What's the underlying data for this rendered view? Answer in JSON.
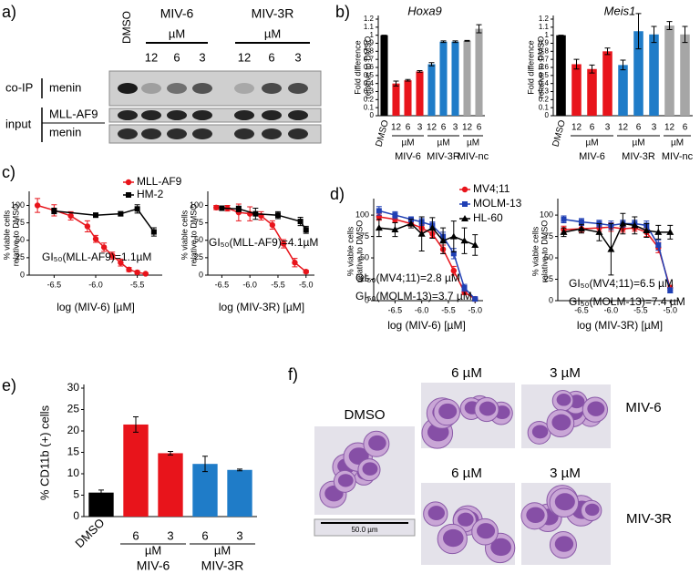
{
  "labels": {
    "a": "a)",
    "b": "b)",
    "c": "c)",
    "d": "d)",
    "e": "e)",
    "f": "f)"
  },
  "blot": {
    "dmso": "DMSO",
    "groups": [
      {
        "name": "MIV-6",
        "unit": "µM",
        "doses": [
          "12",
          "6",
          "3"
        ]
      },
      {
        "name": "MIV-3R",
        "unit": "µM",
        "doses": [
          "12",
          "6",
          "3"
        ]
      }
    ],
    "rows": {
      "coip": "co-IP",
      "input": "input",
      "coip_menin": "menin",
      "mll_af9": "MLL-AF9",
      "input_menin": "menin"
    }
  },
  "micrographs": {
    "dmso": "DMSO",
    "scale": "50.0 µm",
    "doses": [
      "6 µM",
      "3 µM",
      "6 µM",
      "3 µM"
    ],
    "rows": [
      "MIV-6",
      "MIV-3R"
    ]
  },
  "chart_data": [
    {
      "type": "bar",
      "title": "Hoxa9",
      "y_label": [
        "Fold difference",
        "relative to DMSO"
      ],
      "categories": [
        "DMSO",
        "12",
        "6",
        "3",
        "12",
        "6",
        "3",
        "12",
        "6"
      ],
      "values": [
        1,
        0.4,
        0.44,
        0.55,
        0.64,
        0.92,
        0.92,
        0.93,
        1.08
      ],
      "errors": [
        0,
        0.03,
        0.01,
        0.01,
        0.02,
        0.01,
        0.01,
        0.005,
        0.05
      ],
      "colors": [
        "#000000",
        "#e8141b",
        "#e8141b",
        "#e8141b",
        "#1f7cc8",
        "#1f7cc8",
        "#1f7cc8",
        "#a6a6a6",
        "#a6a6a6"
      ],
      "groups": [
        {
          "unit": "µM",
          "name": "MIV-6"
        },
        {
          "unit": "µM",
          "name": "MIV-3R"
        },
        {
          "unit": "µM",
          "name": "MIV-nc"
        }
      ],
      "ylim": [
        0,
        1.2
      ],
      "yticks": [
        0,
        0.1,
        0.2,
        0.3,
        0.4,
        0.5,
        0.6,
        0.7,
        0.8,
        0.9,
        1,
        1.1,
        1.2
      ]
    },
    {
      "type": "bar",
      "title": "Meis1",
      "y_label": [
        "Fold difference",
        "relative to DMSO"
      ],
      "categories": [
        "DMSO",
        "12",
        "6",
        "3",
        "12",
        "6",
        "3",
        "12",
        "6"
      ],
      "values": [
        1,
        0.64,
        0.58,
        0.8,
        0.63,
        1.05,
        1.01,
        1.12,
        1.01
      ],
      "errors": [
        0,
        0.06,
        0.05,
        0.04,
        0.06,
        0.22,
        0.1,
        0.05,
        0.1
      ],
      "colors": [
        "#000000",
        "#e8141b",
        "#e8141b",
        "#e8141b",
        "#1f7cc8",
        "#1f7cc8",
        "#1f7cc8",
        "#a6a6a6",
        "#a6a6a6"
      ],
      "groups": [
        {
          "unit": "µM",
          "name": "MIV-6"
        },
        {
          "unit": "µM",
          "name": "MIV-3R"
        },
        {
          "unit": "µM",
          "name": "MIV-nc"
        }
      ],
      "ylim": [
        0,
        1.2
      ],
      "yticks": [
        0,
        0.1,
        0.2,
        0.3,
        0.4,
        0.5,
        0.6,
        0.7,
        0.8,
        0.9,
        1,
        1.1,
        1.2
      ]
    },
    {
      "type": "line",
      "x_label": "log (MIV-6) [µM]",
      "y_label": [
        "% viable cells",
        "relative to DMSO"
      ],
      "legend": "top-right",
      "series": [
        {
          "name": "MLL-AF9",
          "color": "#e8141b",
          "marker": "circle",
          "x": [
            -6.7,
            -6.5,
            -6.3,
            -6.1,
            -6.0,
            -5.9,
            -5.8,
            -5.7,
            -5.6,
            -5.5,
            -5.4
          ],
          "values": [
            100,
            93,
            85,
            70,
            52,
            40,
            28,
            18,
            8,
            4,
            2
          ],
          "errors": [
            10,
            8,
            6,
            8,
            5,
            6,
            5,
            5,
            3,
            2,
            1
          ]
        },
        {
          "name": "HM-2",
          "color": "#000000",
          "marker": "square",
          "x": [
            -6.5,
            -6.0,
            -5.7,
            -5.5,
            -5.3
          ],
          "values": [
            92,
            86,
            88,
            95,
            62
          ],
          "errors": [
            4,
            3,
            3,
            6,
            6
          ]
        }
      ],
      "annotations": [
        "GI₅₀(MLL-AF9)=1.1µM"
      ],
      "xlim": [
        -6.8,
        -5.2
      ],
      "xticks": [
        -6.5,
        {
          "value": -6,
          "label": "-6.0"
        },
        -5.5
      ],
      "ylim": [
        0,
        115
      ],
      "yticks": [
        0,
        25,
        50,
        75,
        100
      ]
    },
    {
      "type": "line",
      "x_label": "log (MIV-3R) [µM]",
      "y_label": [
        "% viable cells",
        "relative to DMSO"
      ],
      "series": [
        {
          "color": "#e8141b",
          "marker": "circle",
          "x": [
            -6.6,
            -6.4,
            -6.2,
            -6.0,
            -5.8,
            -5.6,
            -5.4,
            -5.2,
            -5.0
          ],
          "values": [
            97,
            96,
            90,
            88,
            85,
            72,
            45,
            18,
            5
          ],
          "errors": [
            3,
            4,
            12,
            10,
            6,
            6,
            6,
            6,
            2
          ]
        },
        {
          "color": "#000000",
          "marker": "square",
          "x": [
            -6.5,
            -6.2,
            -5.9,
            -5.5,
            -5.1,
            -5.0
          ],
          "values": [
            96,
            95,
            88,
            86,
            77,
            65
          ],
          "errors": [
            3,
            4,
            8,
            5,
            6,
            5
          ]
        }
      ],
      "annotations": [
        "GI₅₀(MLL-AF9)=4.1µM"
      ],
      "xlim": [
        -6.75,
        -4.85
      ],
      "xticks": [
        -6.5,
        {
          "value": -6,
          "label": "-6.0"
        },
        -5.5,
        {
          "value": -5,
          "label": "-5.0"
        }
      ],
      "ylim": [
        0,
        115
      ],
      "yticks": [
        0,
        25,
        50,
        75,
        100
      ]
    },
    {
      "type": "line",
      "x_label": "log (MIV-6) [µM]",
      "y_label": [
        "% viable cells",
        "relative to DMSO"
      ],
      "legend": "top-right",
      "series": [
        {
          "name": "MV4;11",
          "color": "#e8141b",
          "marker": "circle",
          "x": [
            -6.8,
            -6.5,
            -6.2,
            -6.0,
            -5.8,
            -5.6,
            -5.4,
            -5.2,
            -5.0
          ],
          "values": [
            98,
            95,
            90,
            85,
            78,
            60,
            35,
            10,
            2
          ],
          "errors": [
            4,
            3,
            3,
            4,
            4,
            5,
            5,
            3,
            1
          ]
        },
        {
          "name": "MOLM-13",
          "color": "#1f3fb4",
          "marker": "square",
          "x": [
            -6.8,
            -6.5,
            -6.2,
            -6.0,
            -5.8,
            -5.6,
            -5.4,
            -5.2,
            -5.0
          ],
          "values": [
            105,
            100,
            95,
            92,
            88,
            75,
            55,
            15,
            2
          ],
          "errors": [
            5,
            4,
            3,
            4,
            4,
            5,
            6,
            4,
            1
          ]
        },
        {
          "name": "HL-60",
          "color": "#000000",
          "marker": "triangle",
          "x": [
            -6.8,
            -6.5,
            -6.2,
            -6.0,
            -5.8,
            -5.6,
            -5.4,
            -5.2,
            -5.0
          ],
          "values": [
            85,
            83,
            90,
            78,
            85,
            70,
            75,
            70,
            65
          ],
          "errors": [
            10,
            8,
            5,
            20,
            12,
            15,
            18,
            15,
            12
          ]
        }
      ],
      "annotations": [
        "GI₅₀(MV4;11)=2.8 µM",
        "GI₅₀(MOLM-13)=3.7 µM"
      ],
      "xlim": [
        -6.9,
        -4.85
      ],
      "xticks": [
        -6.5,
        {
          "value": -6,
          "label": "-6.0"
        },
        -5.5,
        {
          "value": -5,
          "label": "-5.0"
        }
      ],
      "ylim": [
        0,
        115
      ],
      "yticks": [
        0,
        25,
        50,
        75,
        100
      ]
    },
    {
      "type": "line",
      "x_label": "log (MIV-3R) [µM]",
      "y_label": [
        "% viable cells",
        "relative to DMSO"
      ],
      "series": [
        {
          "color": "#e8141b",
          "marker": "circle",
          "x": [
            -6.8,
            -6.5,
            -6.2,
            -6.0,
            -5.8,
            -5.6,
            -5.4,
            -5.2,
            -5.0
          ],
          "values": [
            83,
            84,
            85,
            86,
            84,
            85,
            80,
            62,
            15
          ],
          "errors": [
            4,
            4,
            4,
            5,
            4,
            4,
            5,
            6,
            3
          ]
        },
        {
          "color": "#1f3fb4",
          "marker": "square",
          "x": [
            -6.8,
            -6.5,
            -6.2,
            -6.0,
            -5.8,
            -5.6,
            -5.4,
            -5.2,
            -5.0
          ],
          "values": [
            95,
            92,
            90,
            88,
            90,
            90,
            88,
            65,
            12
          ],
          "errors": [
            4,
            4,
            4,
            5,
            4,
            4,
            5,
            6,
            3
          ]
        },
        {
          "color": "#000000",
          "marker": "triangle",
          "x": [
            -6.8,
            -6.5,
            -6.2,
            -6.0,
            -5.8,
            -5.6,
            -5.4,
            -5.2,
            -5.0
          ],
          "values": [
            80,
            84,
            80,
            60,
            90,
            88,
            82,
            80,
            80
          ],
          "errors": [
            5,
            5,
            10,
            30,
            12,
            10,
            8,
            8,
            8
          ]
        }
      ],
      "annotations": [
        "GI₅₀(MV4;11)=6.5 µM",
        "GI₅₀(MOLM-13)=7.4 µM"
      ],
      "xlim": [
        -6.9,
        -4.85
      ],
      "xticks": [
        -6.5,
        {
          "value": -6,
          "label": "-6.0"
        },
        -5.5,
        {
          "value": -5,
          "label": "-5.0"
        }
      ],
      "ylim": [
        0,
        115
      ],
      "yticks": [
        0,
        25,
        50,
        75,
        100
      ]
    },
    {
      "type": "bar",
      "y_label": [
        "% CD11b (+) cells"
      ],
      "categories": [
        "DMSO",
        "6",
        "3",
        "6",
        "3"
      ],
      "values": [
        5.6,
        21.5,
        14.8,
        12.3,
        10.9
      ],
      "errors": [
        0.6,
        1.8,
        0.4,
        1.8,
        0.2
      ],
      "colors": [
        "#000000",
        "#e8141b",
        "#e8141b",
        "#1f7cc8",
        "#1f7cc8"
      ],
      "groups": [
        {
          "unit": "µM",
          "name": "MIV-6"
        },
        {
          "unit": "µM",
          "name": "MIV-3R"
        }
      ],
      "ylim": [
        0,
        30
      ],
      "yticks": [
        0,
        5,
        10,
        15,
        20,
        25,
        30
      ]
    }
  ]
}
